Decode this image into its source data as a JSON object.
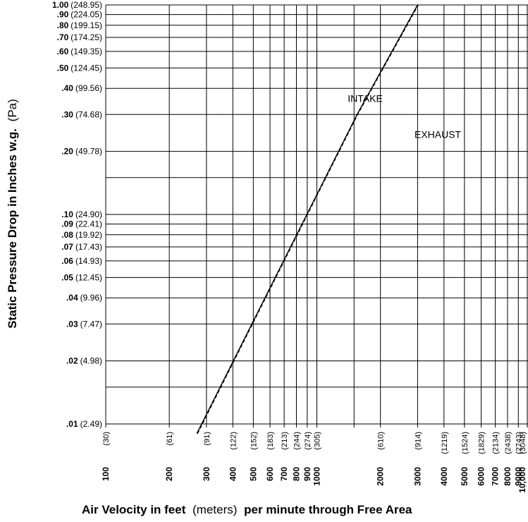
{
  "chart_data": {
    "type": "line",
    "title": "",
    "x_scale": "log",
    "y_scale": "log",
    "xlim": [
      100,
      10000
    ],
    "ylim": [
      0.01,
      1.0
    ],
    "grid": true,
    "xlabel": {
      "part1": "Air Velocity in feet",
      "part2": "(meters)",
      "part3": "per minute through Free Area"
    },
    "ylabel": {
      "part1": "Static Pressure Drop in Inches w.g.",
      "part2": "(Pa)"
    },
    "y_ticks": [
      {
        "value": 1.0,
        "label": "1.00",
        "paren": "(248.95)"
      },
      {
        "value": 0.9,
        "label": ".90",
        "paren": "(224.05)"
      },
      {
        "value": 0.8,
        "label": ".80",
        "paren": "(199.15)"
      },
      {
        "value": 0.7,
        "label": ".70",
        "paren": "(174.25)"
      },
      {
        "value": 0.6,
        "label": ".60",
        "paren": "(149.35)"
      },
      {
        "value": 0.5,
        "label": ".50",
        "paren": "(124.45)"
      },
      {
        "value": 0.4,
        "label": ".40",
        "paren": "(99.56)"
      },
      {
        "value": 0.3,
        "label": ".30",
        "paren": "(74.68)"
      },
      {
        "value": 0.2,
        "label": ".20",
        "paren": "(49.78)"
      },
      {
        "value": 0.1,
        "label": ".10",
        "paren": "(24.90)"
      },
      {
        "value": 0.09,
        "label": ".09",
        "paren": "(22.41)"
      },
      {
        "value": 0.08,
        "label": ".08",
        "paren": "(19.92)"
      },
      {
        "value": 0.07,
        "label": ".07",
        "paren": "(17.43)"
      },
      {
        "value": 0.06,
        "label": ".06",
        "paren": "(14.93)"
      },
      {
        "value": 0.05,
        "label": ".05",
        "paren": "(12.45)"
      },
      {
        "value": 0.04,
        "label": ".04",
        "paren": "(9.96)"
      },
      {
        "value": 0.03,
        "label": ".03",
        "paren": "(7.47)"
      },
      {
        "value": 0.02,
        "label": ".02",
        "paren": "(4.98)"
      },
      {
        "value": 0.01,
        "label": ".01",
        "paren": "(2.49)"
      }
    ],
    "y_minor_grid": [
      0.15,
      0.015
    ],
    "x_ticks": [
      {
        "value": 100,
        "label": "100",
        "paren": "(30)"
      },
      {
        "value": 200,
        "label": "200",
        "paren": "(61)"
      },
      {
        "value": 300,
        "label": "300",
        "paren": "(91)"
      },
      {
        "value": 400,
        "label": "400",
        "paren": "(122)"
      },
      {
        "value": 500,
        "label": "500",
        "paren": "(152)"
      },
      {
        "value": 600,
        "label": "600",
        "paren": "(183)"
      },
      {
        "value": 700,
        "label": "700",
        "paren": "(213)"
      },
      {
        "value": 800,
        "label": "800",
        "paren": "(244)"
      },
      {
        "value": 900,
        "label": "900",
        "paren": "(274)"
      },
      {
        "value": 1000,
        "label": "1000",
        "paren": "(305)"
      },
      {
        "value": 2000,
        "label": "2000",
        "paren": "(610)"
      },
      {
        "value": 3000,
        "label": "3000",
        "paren": "(914)"
      },
      {
        "value": 4000,
        "label": "4000",
        "paren": "(1219)"
      },
      {
        "value": 5000,
        "label": "5000",
        "paren": "(1524)"
      },
      {
        "value": 6000,
        "label": "6000",
        "paren": "(1829)"
      },
      {
        "value": 7000,
        "label": "7000",
        "paren": "(2134)"
      },
      {
        "value": 8000,
        "label": "8000",
        "paren": "(2438)"
      },
      {
        "value": 9000,
        "label": "9000",
        "paren": "(2743)"
      },
      {
        "value": 10000,
        "label": "10,000",
        "paren": "(3048)"
      }
    ],
    "x_minor_grid": [
      1500
    ],
    "series": [
      {
        "name": "INTAKE",
        "style": "solid",
        "points": [
          [
            270,
            0.009
          ],
          [
            1550,
            0.3
          ],
          [
            3000,
            1.0
          ]
        ]
      },
      {
        "name": "EXHAUST",
        "style": "dashed",
        "points": [
          [
            272,
            0.009
          ],
          [
            1560,
            0.3
          ],
          [
            3020,
            1.0
          ]
        ]
      }
    ],
    "annotations": [
      {
        "text": "INTAKE",
        "x": 1400,
        "y": 0.345
      },
      {
        "text": "EXHAUST",
        "x": 2900,
        "y": 0.232
      }
    ]
  }
}
